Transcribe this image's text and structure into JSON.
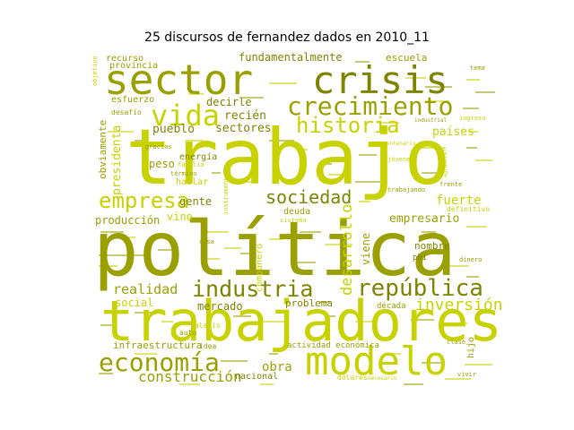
{
  "chart_data": {
    "type": "wordcloud",
    "title": "25 discursos de fernandez dados en 2010_11",
    "colors": {
      "light": "#c8d200",
      "dark": "#9aa000",
      "olive": "#7f8400"
    },
    "words": [
      {
        "text": "trabajo",
        "weight": 100,
        "color": "light"
      },
      {
        "text": "política",
        "weight": 98,
        "color": "dark"
      },
      {
        "text": "trabajadores",
        "weight": 80,
        "color": "light"
      },
      {
        "text": "sector",
        "weight": 60,
        "color": "dark"
      },
      {
        "text": "crisis",
        "weight": 56,
        "color": "olive"
      },
      {
        "text": "modelo",
        "weight": 55,
        "color": "light"
      },
      {
        "text": "crecimiento",
        "weight": 40,
        "color": "dark"
      },
      {
        "text": "economía",
        "weight": 36,
        "color": "dark"
      },
      {
        "text": "vida",
        "weight": 35,
        "color": "light"
      },
      {
        "text": "historia",
        "weight": 30,
        "color": "light"
      },
      {
        "text": "república",
        "weight": 30,
        "color": "olive"
      },
      {
        "text": "industria",
        "weight": 29,
        "color": "olive"
      },
      {
        "text": "empresa",
        "weight": 27,
        "color": "light"
      },
      {
        "text": "sociedad",
        "weight": 26,
        "color": "olive"
      },
      {
        "text": "inversión",
        "weight": 21,
        "color": "light"
      },
      {
        "text": "desarrollo",
        "weight": 19,
        "color": "light"
      },
      {
        "text": "construcción",
        "weight": 19,
        "color": "dark"
      },
      {
        "text": "realidad",
        "weight": 17,
        "color": "dark"
      },
      {
        "text": "fuerte",
        "weight": 16,
        "color": "light"
      },
      {
        "text": "empresario",
        "weight": 15,
        "color": "dark"
      },
      {
        "text": "sectores",
        "weight": 15,
        "color": "olive"
      },
      {
        "text": "países",
        "weight": 15,
        "color": "light"
      },
      {
        "text": "fundamentalmente",
        "weight": 15,
        "color": "olive"
      },
      {
        "text": "pueblo",
        "weight": 15,
        "color": "olive"
      },
      {
        "text": "recién",
        "weight": 15,
        "color": "olive"
      },
      {
        "text": "peso",
        "weight": 14,
        "color": "dark"
      },
      {
        "text": "obra",
        "weight": 14,
        "color": "dark"
      },
      {
        "text": "social",
        "weight": 14,
        "color": "light"
      },
      {
        "text": "mercado",
        "weight": 13,
        "color": "olive"
      },
      {
        "text": "producción",
        "weight": 13,
        "color": "dark"
      },
      {
        "text": "infraestructura",
        "weight": 12,
        "color": "dark"
      },
      {
        "text": "presidenta",
        "weight": 13,
        "color": "light"
      },
      {
        "text": "decirle",
        "weight": 13,
        "color": "olive"
      },
      {
        "text": "viene",
        "weight": 13,
        "color": "dark"
      },
      {
        "text": "problema",
        "weight": 12,
        "color": "olive"
      },
      {
        "text": "nombre",
        "weight": 12,
        "color": "olive"
      },
      {
        "text": "gente",
        "weight": 12,
        "color": "olive"
      },
      {
        "text": "vino",
        "weight": 12,
        "color": "light"
      },
      {
        "text": "obviamente",
        "weight": 11,
        "color": "dark"
      },
      {
        "text": "escuela",
        "weight": 11,
        "color": "dark"
      },
      {
        "text": "recurso",
        "weight": 10,
        "color": "dark"
      },
      {
        "text": "provincia",
        "weight": 10,
        "color": "dark"
      },
      {
        "text": "esfuerzo",
        "weight": 10,
        "color": "dark"
      },
      {
        "text": "energía",
        "weight": 10,
        "color": "olive"
      },
      {
        "text": "hablar",
        "weight": 10,
        "color": "light"
      },
      {
        "text": "deuda",
        "weight": 10,
        "color": "dark"
      },
      {
        "text": "nacional",
        "weight": 10,
        "color": "olive"
      },
      {
        "text": "hijo",
        "weight": 10,
        "color": "dark"
      },
      {
        "text": "compañero",
        "weight": 10,
        "color": "light"
      },
      {
        "text": "pbi",
        "weight": 9,
        "color": "olive"
      },
      {
        "text": "década",
        "weight": 9,
        "color": "dark"
      },
      {
        "text": "actividad económica",
        "weight": 9,
        "color": "dark"
      },
      {
        "text": "desafío",
        "weight": 8,
        "color": "dark"
      },
      {
        "text": "salario",
        "weight": 8,
        "color": "light"
      },
      {
        "text": "auto",
        "weight": 8,
        "color": "dark"
      },
      {
        "text": "idea",
        "weight": 8,
        "color": "dark"
      },
      {
        "text": "dólares",
        "weight": 8,
        "color": "light"
      },
      {
        "text": "definitivo",
        "weight": 8,
        "color": "light"
      },
      {
        "text": "jóvenes",
        "weight": 7,
        "color": "light"
      },
      {
        "text": "ingreso",
        "weight": 7,
        "color": "light"
      },
      {
        "text": "objetivo",
        "weight": 7,
        "color": "light"
      },
      {
        "text": "familia",
        "weight": 7,
        "color": "light"
      },
      {
        "text": "gracias",
        "weight": 7,
        "color": "dark"
      },
      {
        "text": "término",
        "weight": 7,
        "color": "dark"
      },
      {
        "text": "trabajando",
        "weight": 7,
        "color": "dark"
      },
      {
        "text": "instrumento",
        "weight": 7,
        "color": "light"
      },
      {
        "text": "tema",
        "weight": 7,
        "color": "dark"
      },
      {
        "text": "frente",
        "weight": 7,
        "color": "dark"
      },
      {
        "text": "clase",
        "weight": 7,
        "color": "dark"
      },
      {
        "text": "dinero",
        "weight": 7,
        "color": "dark"
      },
      {
        "text": "vivir",
        "weight": 7,
        "color": "dark"
      },
      {
        "text": "cosa",
        "weight": 7,
        "color": "dark"
      },
      {
        "text": "sistema",
        "weight": 7,
        "color": "light"
      },
      {
        "text": "necesario",
        "weight": 6,
        "color": "light"
      },
      {
        "text": "bicentenario",
        "weight": 6,
        "color": "light"
      },
      {
        "text": "industrial",
        "weight": 6,
        "color": "dark"
      },
      {
        "text": "agradecer",
        "weight": 6,
        "color": "light"
      }
    ]
  }
}
